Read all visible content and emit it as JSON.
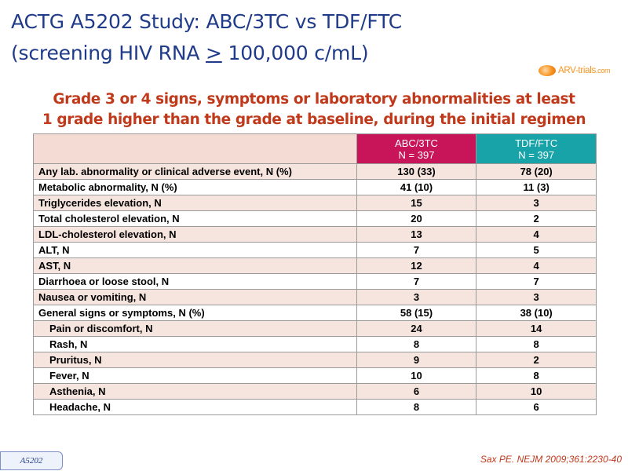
{
  "slide": {
    "title_line1": "ACTG A5202 Study: ABC/3TC vs TDF/FTC",
    "title_line2_pre": "(screening HIV RNA ",
    "title_line2_symbol": ">",
    "title_line2_post": " 100,000 c/mL)",
    "subtitle_line1": "Grade 3 or 4 signs, symptoms or laboratory abnormalities at least",
    "subtitle_line2": "1 grade higher than the grade at baseline, during the initial regimen",
    "logo_text": "ARV-trials",
    "logo_domain": ".com",
    "tag": "A5202",
    "reference": "Sax PE. NEJM 2009;361:2230-40"
  },
  "table": {
    "headers": [
      {
        "line1": "",
        "line2": ""
      },
      {
        "line1": "ABC/3TC",
        "line2": "N = 397"
      },
      {
        "line1": "TDF/FTC",
        "line2": "N = 397"
      }
    ],
    "rows": [
      {
        "label": "Any lab. abnormality or clinical adverse event, N (%)",
        "abc": "130 (33)",
        "tdf": "78 (20)"
      },
      {
        "label": "Metabolic abnormality, N (%)",
        "abc": "41 (10)",
        "tdf": "11 (3)"
      },
      {
        "label": "Triglycerides elevation, N",
        "abc": "15",
        "tdf": "3"
      },
      {
        "label": "Total cholesterol elevation, N",
        "abc": "20",
        "tdf": "2"
      },
      {
        "label": "LDL-cholesterol elevation, N",
        "abc": "13",
        "tdf": "4"
      },
      {
        "label": "ALT, N",
        "abc": "7",
        "tdf": "5"
      },
      {
        "label": "AST, N",
        "abc": "12",
        "tdf": "4"
      },
      {
        "label": "Diarrhoea or loose stool, N",
        "abc": "7",
        "tdf": "7"
      },
      {
        "label": "Nausea or vomiting, N",
        "abc": "3",
        "tdf": "3"
      },
      {
        "label": "General signs or symptoms, N (%)",
        "abc": "58 (15)",
        "tdf": "38 (10)"
      },
      {
        "label": "Pain or discomfort, N",
        "abc": "24",
        "tdf": "14"
      },
      {
        "label": "Rash, N",
        "abc": "8",
        "tdf": "8"
      },
      {
        "label": "Pruritus, N",
        "abc": "9",
        "tdf": "2"
      },
      {
        "label": "Fever, N",
        "abc": "10",
        "tdf": "8"
      },
      {
        "label": "Asthenia, N",
        "abc": "6",
        "tdf": "10"
      },
      {
        "label": "Headache, N",
        "abc": "8",
        "tdf": "6"
      }
    ]
  }
}
